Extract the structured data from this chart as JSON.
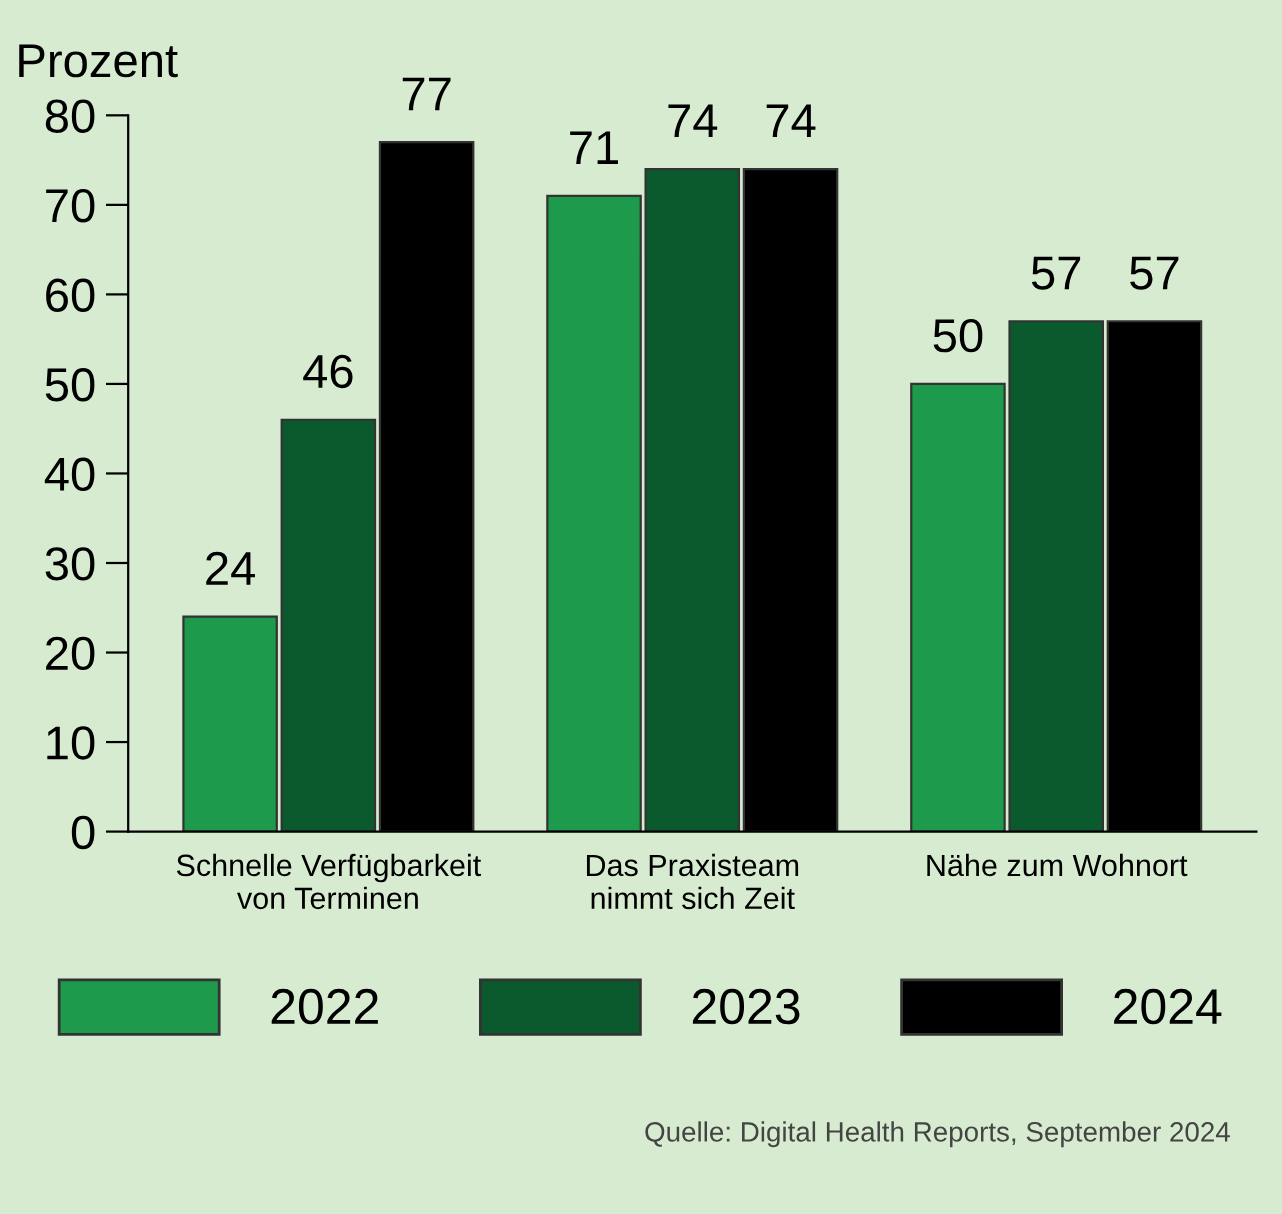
{
  "chart_data": {
    "type": "bar",
    "ylabel": "Prozent",
    "categories": [
      "Schnelle Verfügbarkeit\nvon Terminen",
      "Das Praxisteam\nnimmt sich Zeit",
      "Nähe zum Wohnort"
    ],
    "series": [
      {
        "name": "2022",
        "color": "#1e9a4c",
        "values": [
          24,
          71,
          50
        ]
      },
      {
        "name": "2023",
        "color": "#0b5a2e",
        "values": [
          46,
          74,
          57
        ]
      },
      {
        "name": "2024",
        "color": "#000000",
        "values": [
          77,
          74,
          57
        ]
      }
    ],
    "ylim": [
      0,
      80
    ],
    "yticks": [
      0,
      10,
      20,
      30,
      40,
      50,
      60,
      70,
      80
    ],
    "data_labels": true,
    "grid": false,
    "legend": "bottom",
    "annotations": [
      "Quelle: Digital Health Reports, September 2024"
    ]
  }
}
